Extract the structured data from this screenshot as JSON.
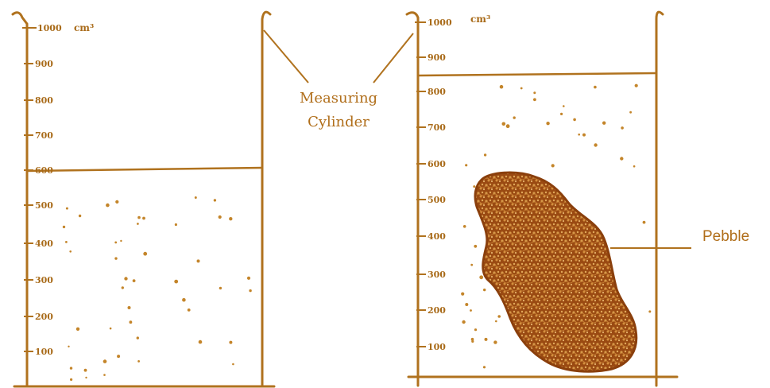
{
  "colors": {
    "ink": "#b0721e",
    "pebble_fill": "#9a4a12",
    "pebble_speckle": "#d79a4a",
    "water_dots": "#c4852a"
  },
  "left_cylinder": {
    "top_label": "1000",
    "unit": "cm³",
    "tick_labels": [
      "900",
      "800",
      "700",
      "600",
      "500",
      "400",
      "300",
      "200",
      "100"
    ],
    "water_level": 600
  },
  "right_cylinder": {
    "top_label": "1000",
    "unit": "cm³",
    "tick_labels": [
      "900",
      "800",
      "700",
      "600",
      "500",
      "400",
      "300",
      "200",
      "100"
    ],
    "water_level": 850
  },
  "labels": {
    "measuring_line1": "Measuring",
    "measuring_line2": "Cylinder",
    "pebble": "Pebble"
  }
}
